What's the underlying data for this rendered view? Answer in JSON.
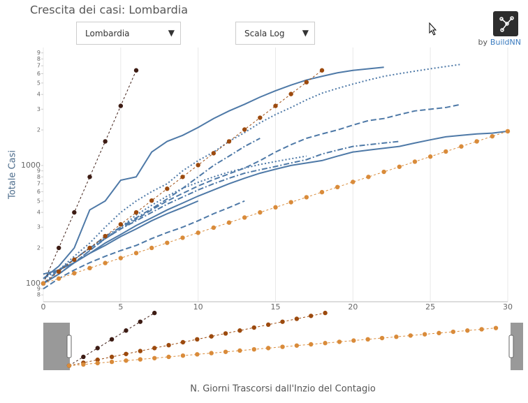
{
  "chart_data": {
    "type": "line",
    "title": "Crescita dei casi: Lombardia",
    "x_label": "N. Giorni Trascorsi dall'Inzio del Contagio",
    "y_label": "Totale Casi",
    "log_y": true,
    "grid": "x",
    "xlim": [
      0,
      30
    ],
    "xticks": [
      0,
      5,
      10,
      15,
      20,
      25,
      30
    ],
    "ylim": [
      70,
      10000
    ],
    "yticks": [
      {
        "value": 80,
        "label": "8"
      },
      {
        "value": 90,
        "label": "9"
      },
      100,
      {
        "value": 200,
        "label": "2"
      },
      {
        "value": 300,
        "label": "3"
      },
      {
        "value": 400,
        "label": "4"
      },
      {
        "value": 500,
        "label": "5"
      },
      {
        "value": 600,
        "label": "6"
      },
      {
        "value": 700,
        "label": "7"
      },
      {
        "value": 800,
        "label": "8"
      },
      {
        "value": 900,
        "label": "9"
      },
      1000,
      {
        "value": 2000,
        "label": "2"
      },
      {
        "value": 3000,
        "label": "3"
      },
      {
        "value": 4000,
        "label": "4"
      },
      {
        "value": 5000,
        "label": "5"
      },
      {
        "value": 6000,
        "label": "6"
      },
      {
        "value": 7000,
        "label": "7"
      },
      {
        "value": 8000,
        "label": "8"
      },
      {
        "value": 9000,
        "label": "9"
      }
    ],
    "x": [
      0,
      1,
      2,
      3,
      4,
      5,
      6,
      7,
      8,
      9,
      10,
      11,
      12,
      13,
      14,
      15,
      16,
      17,
      18,
      19,
      20,
      21,
      22,
      23,
      24,
      25,
      26,
      27,
      28,
      29,
      30
    ],
    "series": [
      {
        "color": "#4e79a7",
        "dash": "solid",
        "values": [
          110,
          140,
          200,
          420,
          500,
          750,
          800,
          1300,
          1600,
          1800,
          2100,
          2500,
          2900,
          3300,
          3800,
          4300,
          4800,
          5300,
          5700,
          6100,
          6400,
          6600,
          6800,
          null,
          null,
          null,
          null,
          null,
          null,
          null,
          null
        ]
      },
      {
        "color": "#4e79a7",
        "dash": "dotted",
        "values": [
          120,
          130,
          170,
          220,
          300,
          400,
          500,
          600,
          700,
          900,
          1100,
          1300,
          1600,
          1900,
          2300,
          2700,
          3100,
          3600,
          4100,
          4500,
          4900,
          5300,
          5700,
          6000,
          6300,
          6600,
          6900,
          7200,
          null,
          null,
          null
        ]
      },
      {
        "color": "#4e79a7",
        "dash": "dashed",
        "values": [
          100,
          120,
          150,
          190,
          240,
          290,
          350,
          420,
          500,
          580,
          670,
          760,
          850,
          950,
          1100,
          1300,
          1500,
          1700,
          1850,
          2000,
          2200,
          2400,
          2500,
          2700,
          2900,
          3000,
          3100,
          3300,
          null,
          null,
          null
        ]
      },
      {
        "color": "#4e79a7",
        "dash": "solid",
        "values": [
          120,
          130,
          150,
          180,
          220,
          260,
          310,
          360,
          420,
          480,
          550,
          620,
          700,
          780,
          860,
          930,
          1000,
          1050,
          1100,
          1200,
          1300,
          1350,
          1400,
          1450,
          1550,
          1650,
          1750,
          1800,
          1850,
          1880,
          1950
        ]
      },
      {
        "color": "#4e79a7",
        "dash": "dashdot",
        "values": [
          110,
          130,
          160,
          200,
          240,
          290,
          340,
          400,
          470,
          540,
          620,
          700,
          780,
          860,
          920,
          980,
          1050,
          1120,
          1250,
          1350,
          1450,
          1500,
          1550,
          1600,
          null,
          null,
          null,
          null,
          null,
          null,
          null
        ]
      },
      {
        "color": "#4e79a7",
        "dash": "dotted",
        "values": [
          100,
          120,
          150,
          190,
          240,
          300,
          380,
          460,
          550,
          640,
          720,
          800,
          880,
          950,
          1020,
          1080,
          1140,
          1200,
          null,
          null,
          null,
          null,
          null,
          null,
          null,
          null,
          null,
          null,
          null,
          null,
          null
        ]
      },
      {
        "color": "#4e79a7",
        "dash": "dashed",
        "values": [
          90,
          110,
          130,
          150,
          170,
          190,
          210,
          240,
          270,
          300,
          340,
          390,
          440,
          500,
          null,
          null,
          null,
          null,
          null,
          null,
          null,
          null,
          null,
          null,
          null,
          null,
          null,
          null,
          null,
          null,
          null
        ]
      },
      {
        "color": "#4e79a7",
        "dash": "dashdot",
        "values": [
          100,
          130,
          160,
          200,
          250,
          300,
          360,
          430,
          520,
          640,
          800,
          1000,
          1200,
          1450,
          1700,
          null,
          null,
          null,
          null,
          null,
          null,
          null,
          null,
          null,
          null,
          null,
          null,
          null,
          null,
          null,
          null
        ]
      },
      {
        "color": "#4e79a7",
        "dash": "solid",
        "values": [
          100,
          120,
          150,
          180,
          210,
          250,
          290,
          340,
          390,
          440,
          500,
          null,
          null,
          null,
          null,
          null,
          null,
          null,
          null,
          null,
          null,
          null,
          null,
          null,
          null,
          null,
          null,
          null,
          null,
          null,
          null
        ]
      },
      {
        "color": "#3d1c14",
        "dash": "reference",
        "markers": true,
        "values": [
          100,
          200,
          400,
          800,
          1600,
          3200,
          6400,
          null,
          null,
          null,
          null,
          null,
          null,
          null,
          null,
          null,
          null,
          null,
          null,
          null,
          null,
          null,
          null,
          null,
          null,
          null,
          null,
          null,
          null,
          null,
          null
        ]
      },
      {
        "color": "#9c4a0e",
        "dash": "reference",
        "markers": true,
        "values": [
          100,
          126,
          159,
          200,
          252,
          317,
          400,
          504,
          635,
          800,
          1008,
          1270,
          1600,
          2016,
          2540,
          3200,
          4032,
          5080,
          6400,
          null,
          null,
          null,
          null,
          null,
          null,
          null,
          null,
          null,
          null,
          null,
          null
        ]
      },
      {
        "color": "#d98b3a",
        "dash": "reference",
        "markers": true,
        "values": [
          100,
          110,
          122,
          135,
          149,
          164,
          181,
          200,
          221,
          244,
          269,
          297,
          328,
          362,
          400,
          442,
          488,
          538,
          594,
          656,
          725,
          800,
          883,
          975,
          1077,
          1189,
          1313,
          1449,
          1600,
          1767,
          1950
        ]
      }
    ]
  },
  "controls": [
    "Lombardia",
    "Scala Log"
  ],
  "brand": {
    "by": "by",
    "name": "BuildNN"
  }
}
